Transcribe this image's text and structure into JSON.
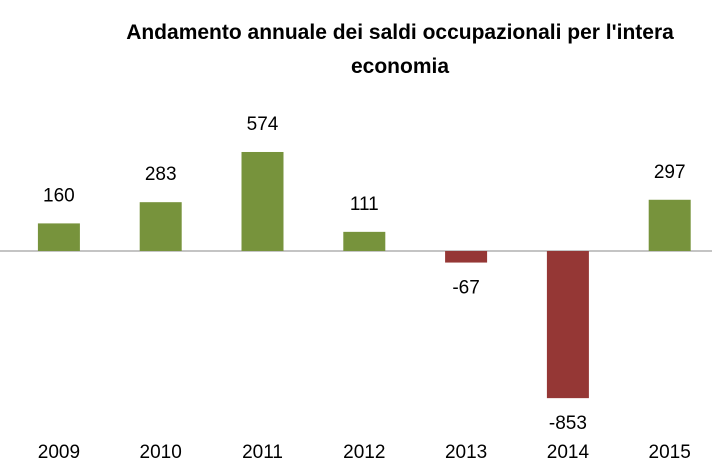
{
  "chart_data": {
    "type": "bar",
    "title": "Andamento annuale dei saldi occupazionali per l'intera economia",
    "categories": [
      "2009",
      "2010",
      "2011",
      "2012",
      "2013",
      "2014",
      "2015"
    ],
    "values": [
      160,
      283,
      574,
      111,
      -67,
      -853,
      297
    ],
    "color": "#77933c",
    "negative_color": "#953735",
    "ylim": [
      -1000,
      800
    ]
  }
}
